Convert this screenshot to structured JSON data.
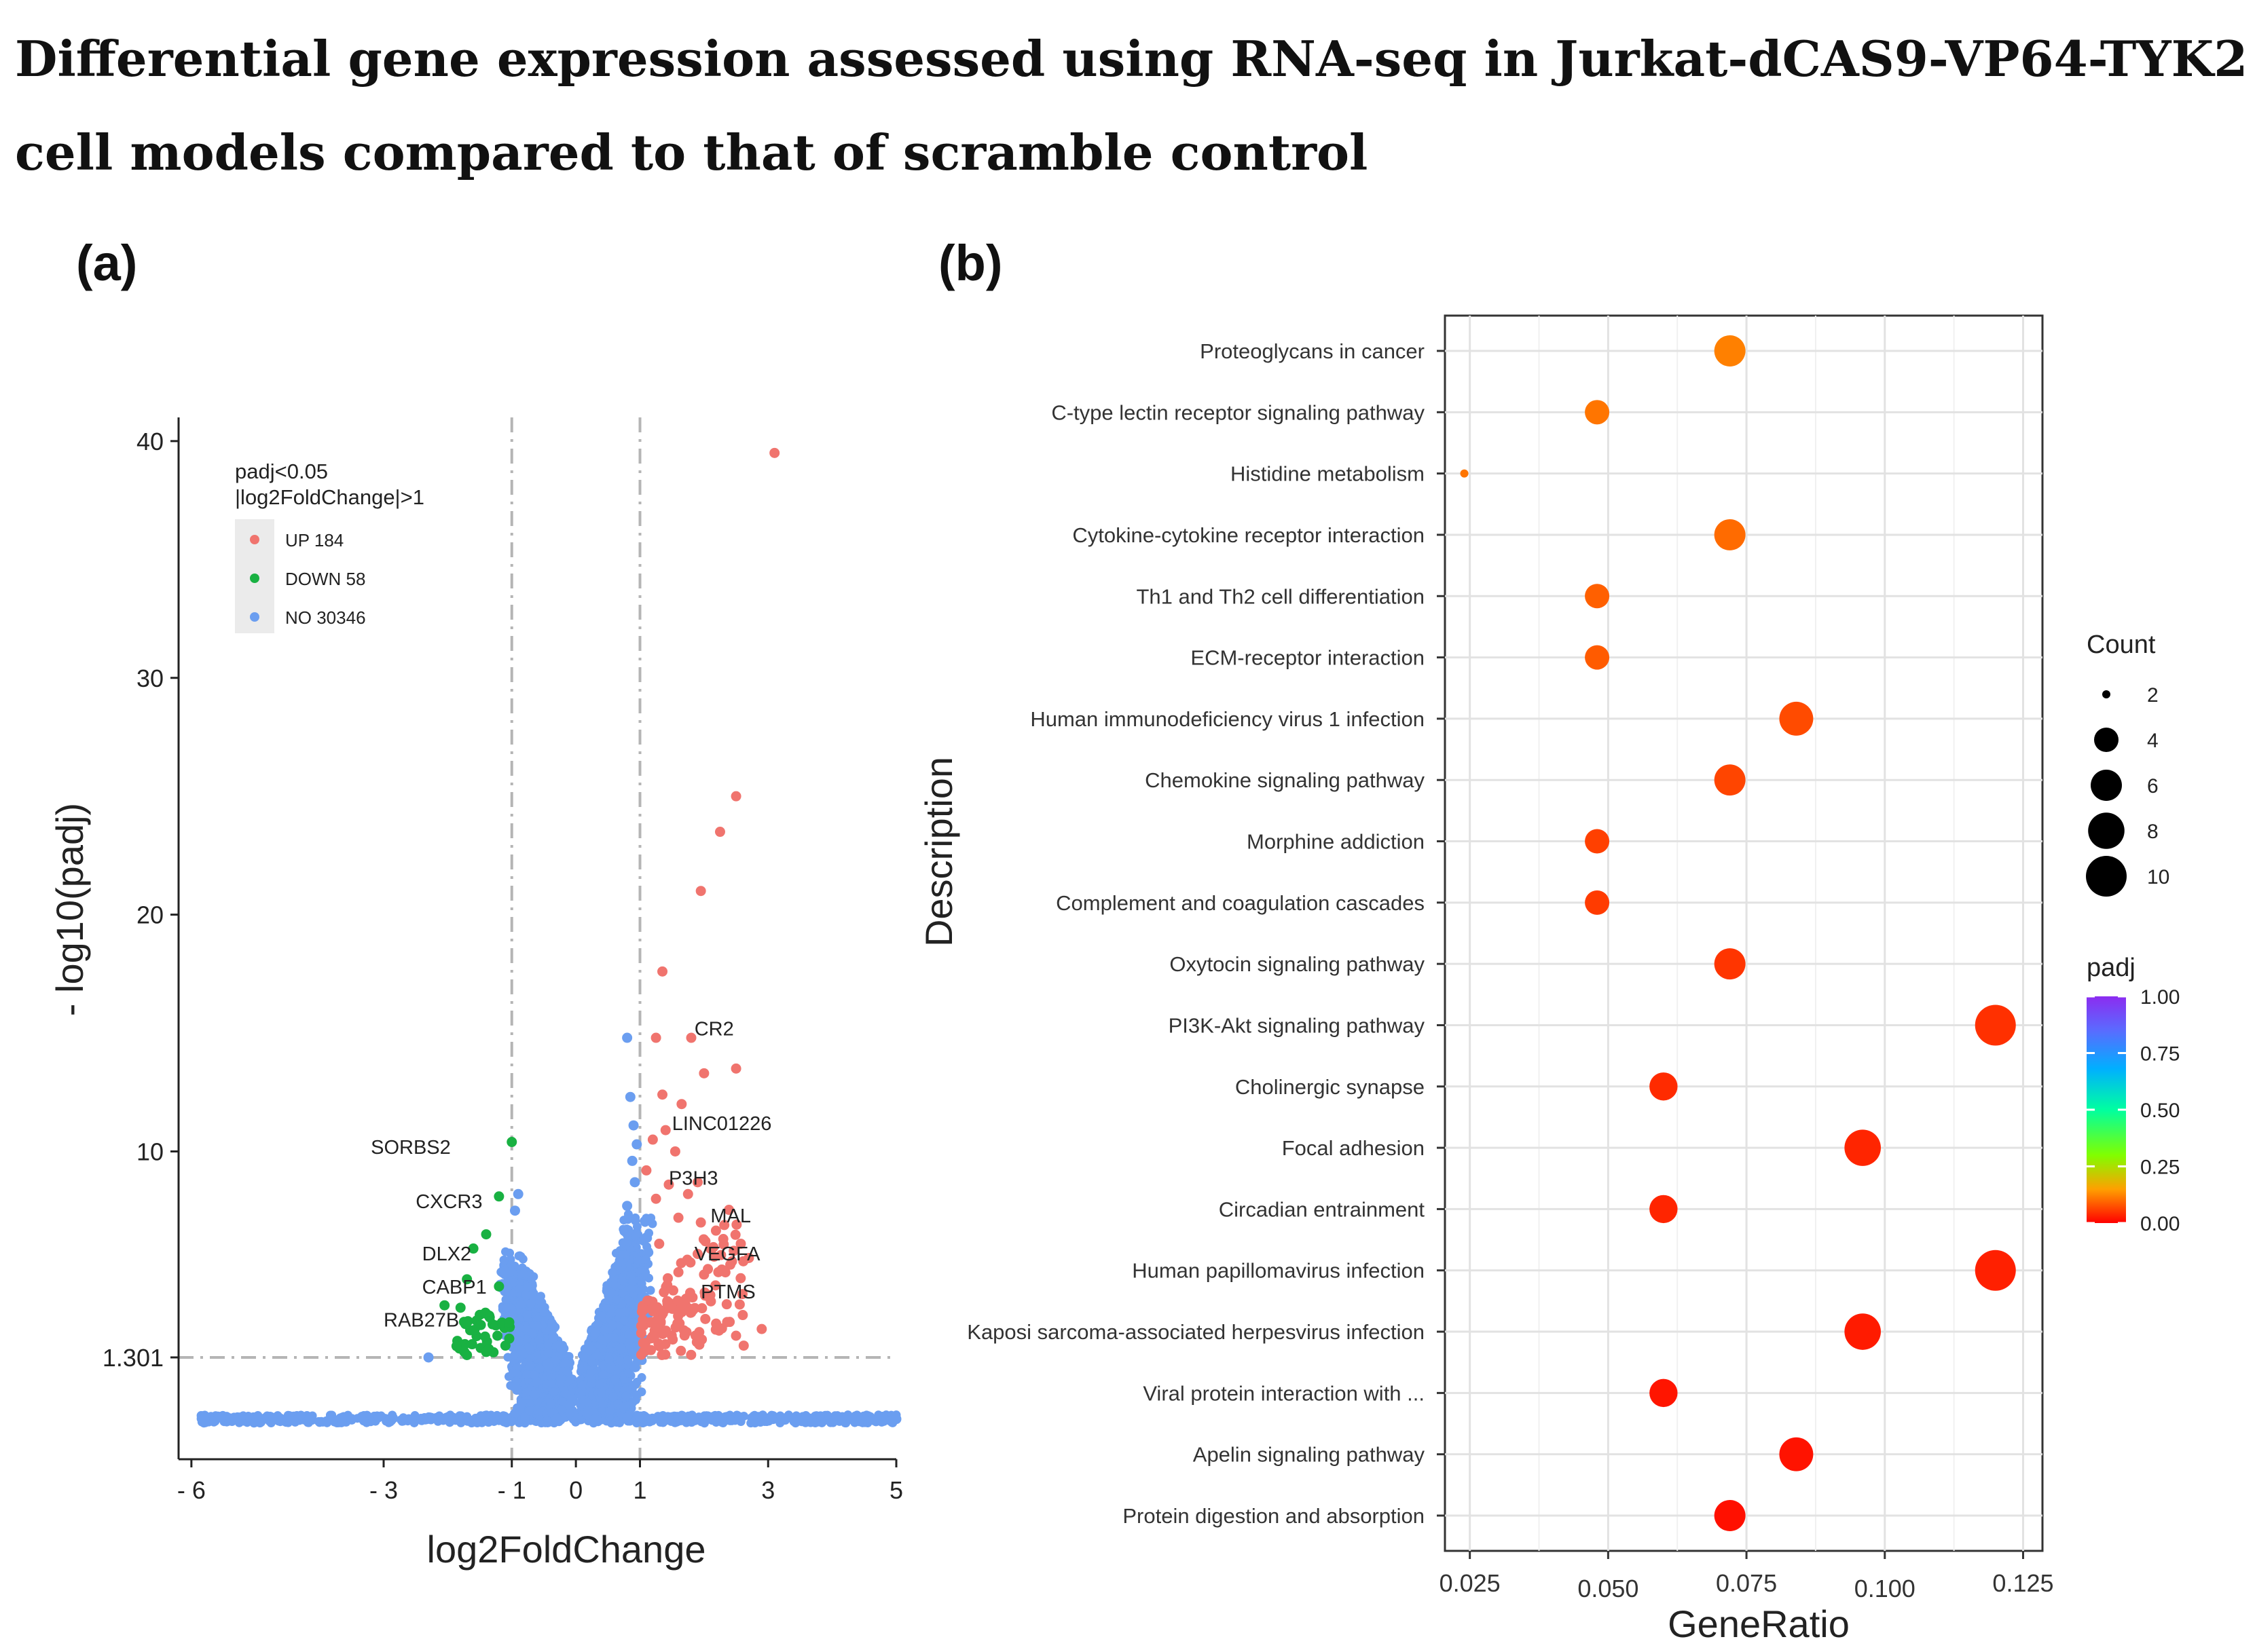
{
  "title": "Differential gene expression assessed using RNA-seq in Jurkat-dCAS9-VP64-TYK2 cell models compared to that of scramble control",
  "chart_data": [
    {
      "id": "a",
      "panel_label": "(a)",
      "type": "scatter",
      "subtype": "volcano",
      "xlabel": "log2FoldChange",
      "ylabel": "- log10(padj)",
      "xlim": [
        -6.2,
        5
      ],
      "ylim": [
        -3,
        41
      ],
      "x_ticks": [
        {
          "value": -6,
          "label": "- 6"
        },
        {
          "value": -3,
          "label": "- 3"
        },
        {
          "value": -1,
          "label": "- 1"
        },
        {
          "value": 0,
          "label": "0"
        },
        {
          "value": 1,
          "label": "1"
        },
        {
          "value": 3,
          "label": "3"
        },
        {
          "value": 5,
          "label": "5"
        }
      ],
      "y_ticks": [
        {
          "value": 1.301,
          "label": "1.301"
        },
        {
          "value": 10,
          "label": "10"
        },
        {
          "value": 20,
          "label": "20"
        },
        {
          "value": 30,
          "label": "30"
        },
        {
          "value": 40,
          "label": "40"
        }
      ],
      "thresholds": {
        "x": [
          -1,
          1
        ],
        "y": 1.301
      },
      "legend": {
        "title_lines": [
          "padj<0.05",
          "|log2FoldChange|>1"
        ],
        "position": "top-left",
        "entries": [
          {
            "label": "UP 184",
            "color": "#f0746e"
          },
          {
            "label": "DOWN 58",
            "color": "#19b142"
          },
          {
            "label": "NO 30346",
            "color": "#6b9ef0"
          }
        ]
      },
      "colors": {
        "up": "#f0746e",
        "down": "#19b142",
        "no": "#6b9ef0",
        "threshold_line": "#b5b5b5"
      },
      "series": {
        "up": [
          [
            3.1,
            39.5
          ],
          [
            2.5,
            25.0
          ],
          [
            2.25,
            23.5
          ],
          [
            1.95,
            21.0
          ],
          [
            1.35,
            17.6
          ],
          [
            1.8,
            14.8
          ],
          [
            1.25,
            14.8
          ],
          [
            2.5,
            13.5
          ],
          [
            2.0,
            13.3
          ],
          [
            1.35,
            12.4
          ],
          [
            1.65,
            12.0
          ],
          [
            1.4,
            10.9
          ],
          [
            1.2,
            10.5
          ],
          [
            1.55,
            10.0
          ],
          [
            1.1,
            9.2
          ],
          [
            1.9,
            8.7
          ],
          [
            1.45,
            8.6
          ],
          [
            1.75,
            8.2
          ],
          [
            1.25,
            8.0
          ],
          [
            1.6,
            7.2
          ],
          [
            1.95,
            7.0
          ],
          [
            2.3,
            6.3
          ],
          [
            2.1,
            5.9
          ],
          [
            1.3,
            6.1
          ],
          [
            2.7,
            5.5
          ],
          [
            2.0,
            4.8
          ],
          [
            1.6,
            4.9
          ],
          [
            2.9,
            2.5
          ],
          [
            2.4,
            2.8
          ],
          [
            1.8,
            3.2
          ],
          [
            1.2,
            2.2
          ],
          [
            1.1,
            1.6
          ]
        ],
        "down": [
          [
            -1.0,
            10.4
          ],
          [
            -1.2,
            8.1
          ],
          [
            -1.4,
            6.5
          ],
          [
            -1.6,
            5.9
          ],
          [
            -1.7,
            4.6
          ],
          [
            -1.2,
            4.3
          ],
          [
            -2.05,
            3.5
          ],
          [
            -1.8,
            3.4
          ],
          [
            -1.5,
            3.1
          ],
          [
            -1.3,
            2.7
          ],
          [
            -1.55,
            2.2
          ],
          [
            -1.85,
            2.0
          ],
          [
            -1.1,
            1.8
          ],
          [
            -1.7,
            1.4
          ]
        ],
        "no": [
          [
            0.8,
            14.8
          ],
          [
            0.85,
            12.3
          ],
          [
            0.9,
            11.1
          ],
          [
            0.95,
            10.3
          ],
          [
            0.88,
            9.6
          ],
          [
            0.92,
            8.7
          ],
          [
            0.8,
            7.7
          ],
          [
            -0.9,
            8.2
          ],
          [
            -0.95,
            7.5
          ],
          [
            -2.3,
            1.3
          ],
          [
            -5.8,
            -1.3
          ],
          [
            -3.5,
            -1.3
          ],
          [
            4.3,
            -1.3
          ],
          [
            5.0,
            -1.3
          ],
          [
            0.3,
            -1.3
          ],
          [
            -0.3,
            -1.3
          ]
        ],
        "bulk_note": "dense cloud of non-significant genes around |log2FoldChange| ≤ 1 and padj > 0.05"
      },
      "annotations": [
        {
          "label": "CR2",
          "x": 1.85,
          "y": 14.9
        },
        {
          "label": "LINC01226",
          "x": 1.5,
          "y": 10.9
        },
        {
          "label": "P3H3",
          "x": 1.45,
          "y": 8.6
        },
        {
          "label": "MAL",
          "x": 2.1,
          "y": 7.0
        },
        {
          "label": "VEGFA",
          "x": 1.85,
          "y": 5.4
        },
        {
          "label": "PTMS",
          "x": 1.95,
          "y": 3.8
        },
        {
          "label": "SORBS2",
          "x": -3.2,
          "y": 9.9
        },
        {
          "label": "CXCR3",
          "x": -2.5,
          "y": 7.6
        },
        {
          "label": "DLX2",
          "x": -2.4,
          "y": 5.4
        },
        {
          "label": "CABP1",
          "x": -2.4,
          "y": 4.0
        },
        {
          "label": "RAB27B",
          "x": -3.0,
          "y": 2.6
        }
      ]
    },
    {
      "id": "b",
      "panel_label": "(b)",
      "type": "scatter",
      "subtype": "dotplot",
      "xlabel": "GeneRatio",
      "ylabel": "Description",
      "xlim": [
        0.0205,
        0.1285
      ],
      "x_ticks": [
        0.025,
        0.05,
        0.075,
        0.1,
        0.125
      ],
      "x_tick_labels": [
        "0.025",
        "0.050",
        "0.075",
        "0.100",
        "0.125"
      ],
      "grid": true,
      "categories": [
        "Proteoglycans in cancer",
        "C-type lectin receptor signaling pathway",
        "Histidine metabolism",
        "Cytokine-cytokine receptor interaction",
        "Th1 and Th2 cell differentiation",
        "ECM-receptor interaction",
        "Human immunodeficiency virus 1 infection",
        "Chemokine signaling pathway",
        "Morphine addiction",
        "Complement and coagulation cascades",
        "Oxytocin signaling pathway",
        "PI3K-Akt signaling pathway",
        "Cholinergic synapse",
        "Focal adhesion",
        "Circadian entrainment",
        "Human papillomavirus infection",
        "Kaposi sarcoma-associated herpesvirus infection",
        "Viral protein interaction with ...",
        "Apelin signaling pathway",
        "Protein digestion and absorption"
      ],
      "gene_ratio": [
        0.072,
        0.048,
        0.024,
        0.072,
        0.048,
        0.048,
        0.084,
        0.072,
        0.048,
        0.048,
        0.072,
        0.12,
        0.06,
        0.096,
        0.06,
        0.12,
        0.096,
        0.06,
        0.084,
        0.072
      ],
      "count": [
        6,
        4,
        2,
        6,
        4,
        4,
        7,
        6,
        4,
        4,
        6,
        10,
        5,
        8,
        5,
        10,
        8,
        5,
        7,
        6
      ],
      "padj": [
        0.12,
        0.11,
        0.11,
        0.1,
        0.09,
        0.085,
        0.07,
        0.065,
        0.06,
        0.055,
        0.05,
        0.045,
        0.04,
        0.035,
        0.035,
        0.03,
        0.025,
        0.02,
        0.018,
        0.015
      ],
      "legend_count": {
        "title": "Count",
        "values": [
          2,
          4,
          6,
          8,
          10
        ],
        "labels": [
          "2",
          "4",
          "6",
          "8",
          "10"
        ]
      },
      "legend_padj": {
        "title": "padj",
        "range": [
          0,
          1
        ],
        "tick_labels": [
          "1.00",
          "0.75",
          "0.50",
          "0.25",
          "0.00"
        ]
      },
      "colorscale": [
        "#ff0000",
        "#ffa000",
        "#80ff00",
        "#00ffa0",
        "#00b0ff",
        "#5a6bff",
        "#8c2cf0"
      ]
    }
  ]
}
